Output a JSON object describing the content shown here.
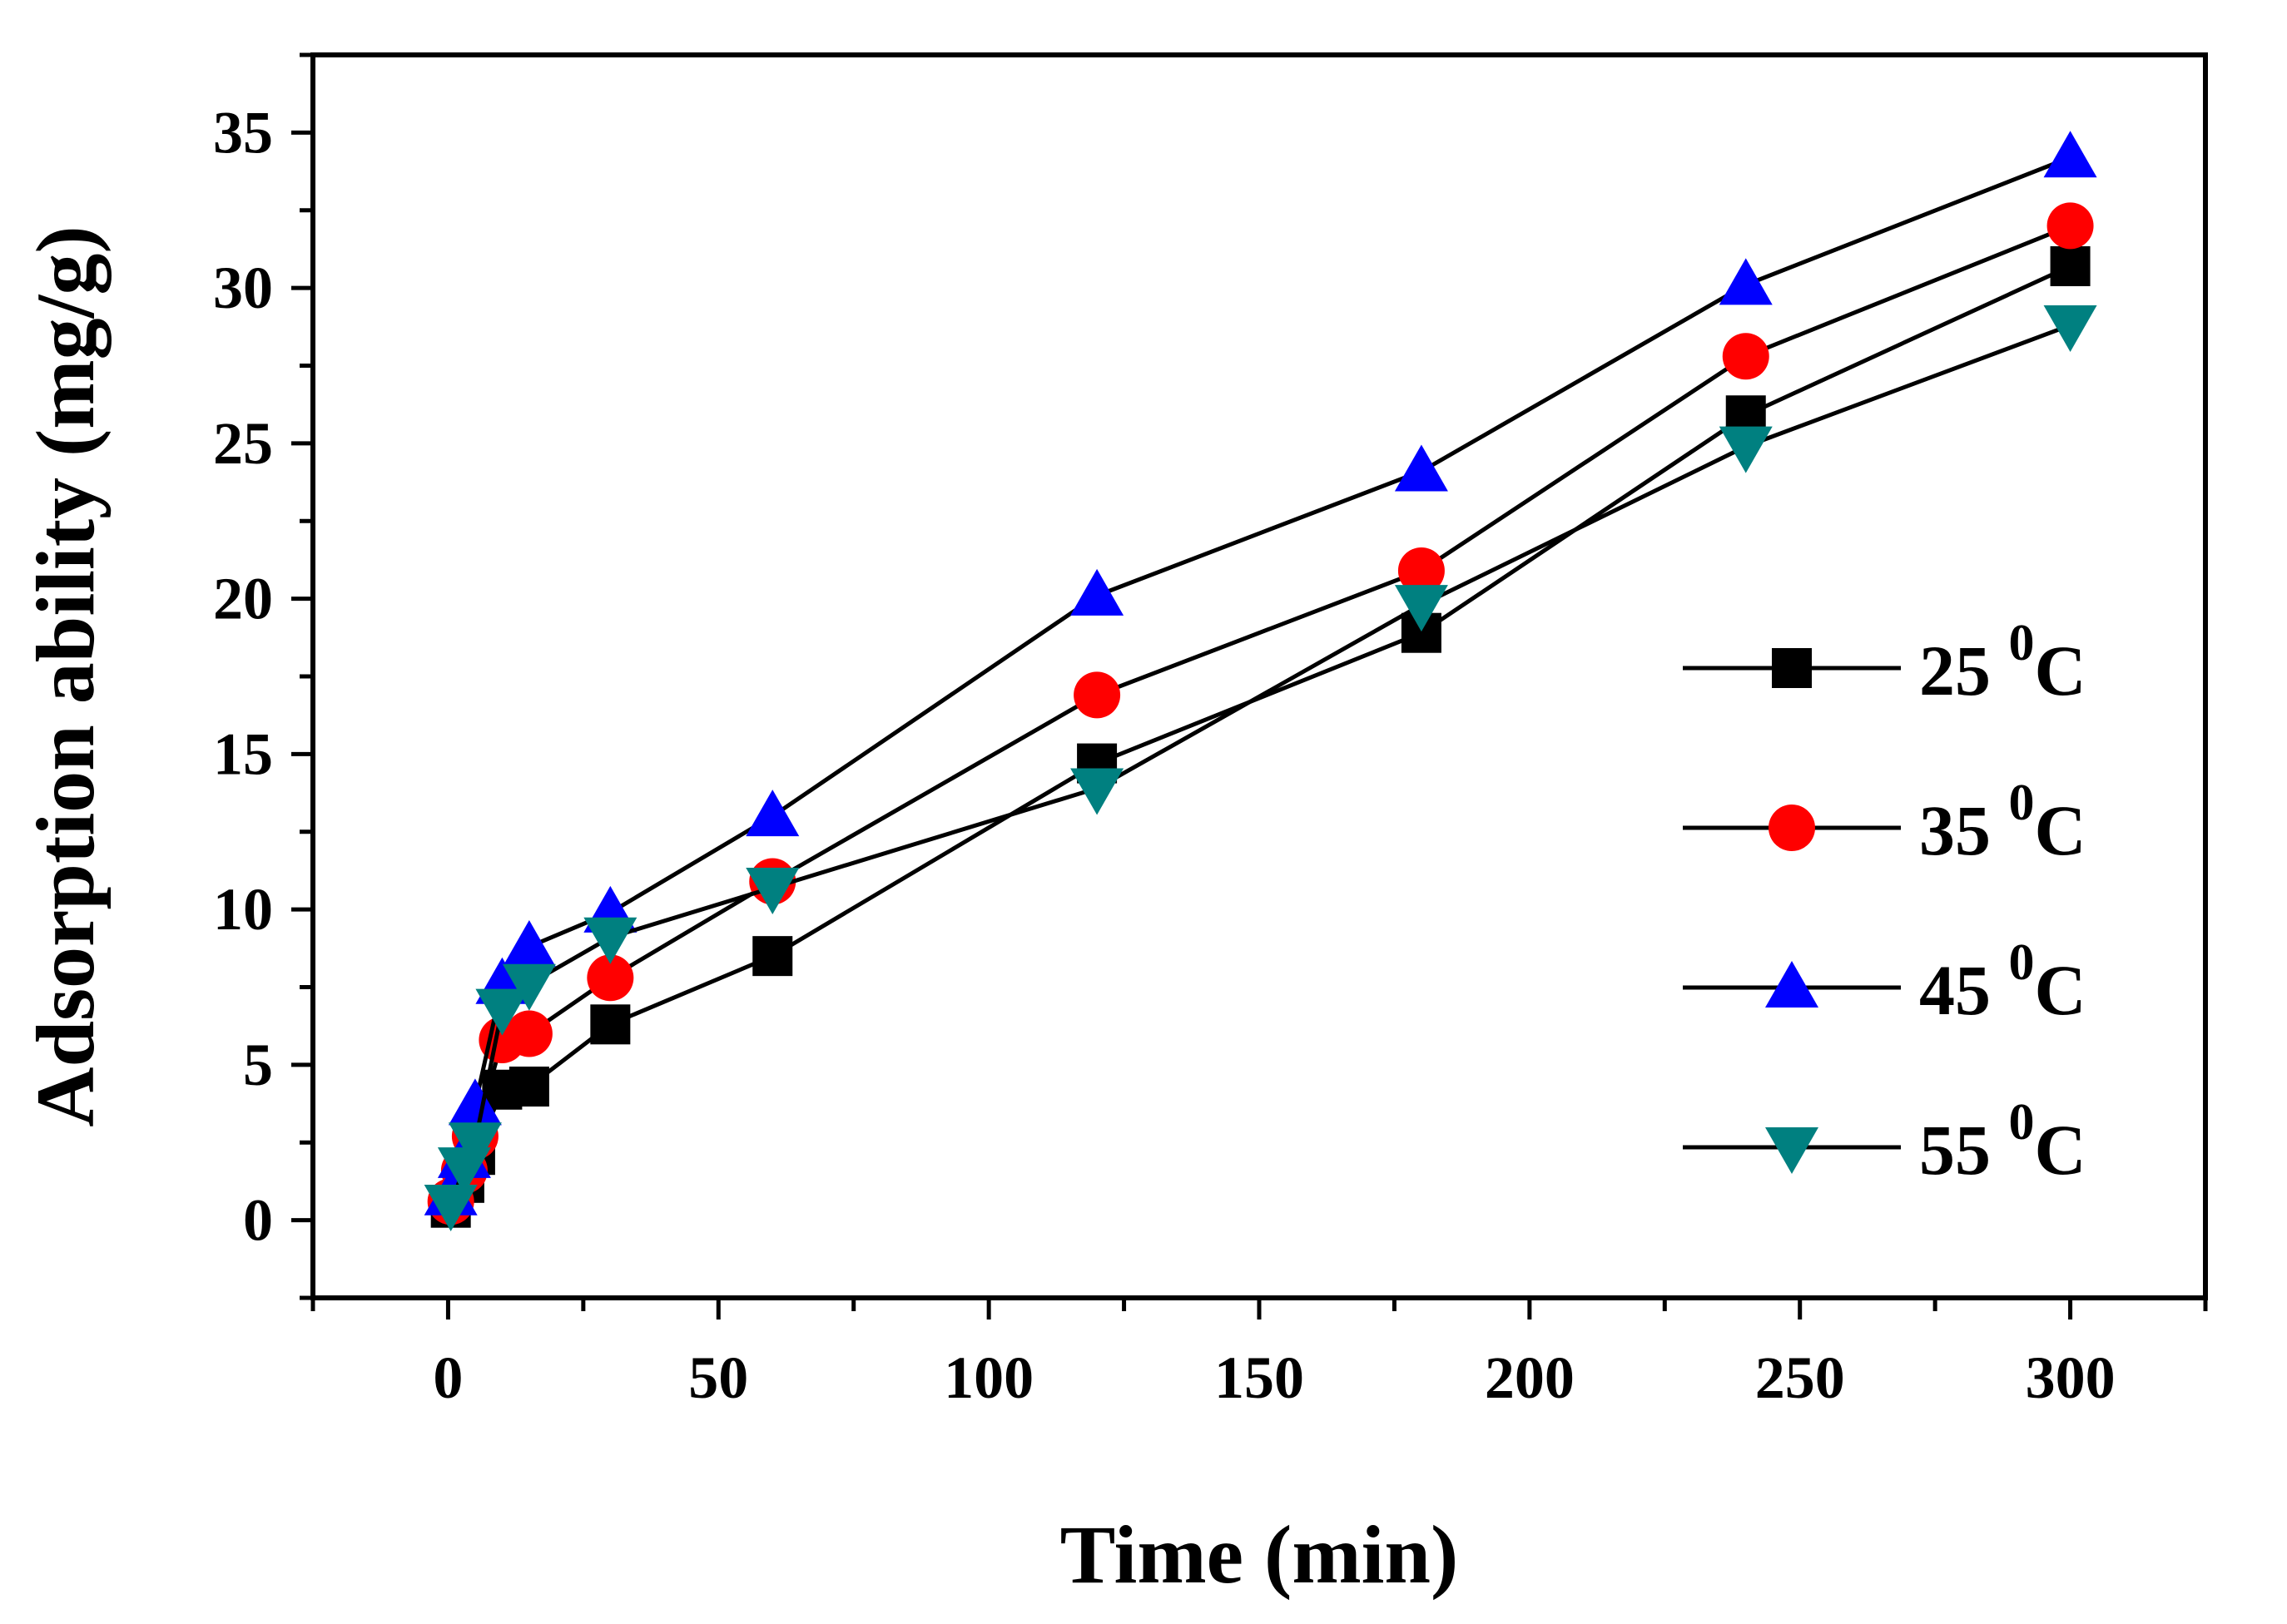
{
  "chart_data": {
    "type": "line",
    "title": "",
    "xlabel": "Time (min)",
    "ylabel": "Adsorption ability (mg/g)",
    "xlim": [
      -25,
      325
    ],
    "ylim": [
      -2.5,
      37.5
    ],
    "xticks": [
      0,
      50,
      100,
      150,
      200,
      250,
      300
    ],
    "yticks": [
      0,
      5,
      10,
      15,
      20,
      25,
      30,
      35
    ],
    "x": [
      0.5,
      3,
      5,
      10,
      15,
      30,
      60,
      120,
      180,
      240,
      300
    ],
    "legend_position": "center-right",
    "series": [
      {
        "name": "25 ⁰C",
        "label_main": "25",
        "label_sup": "0",
        "label_unit": "C",
        "marker": "square",
        "color": "#000000",
        "values": [
          0.4,
          1.2,
          2.1,
          4.2,
          4.3,
          6.3,
          8.5,
          14.7,
          18.9,
          25.9,
          30.7
        ]
      },
      {
        "name": "35 ⁰C",
        "label_main": "35",
        "label_sup": "0",
        "label_unit": "C",
        "marker": "circle",
        "color": "#ff0000",
        "values": [
          0.6,
          1.6,
          2.7,
          5.8,
          6.0,
          7.8,
          10.9,
          16.9,
          20.9,
          27.8,
          32.0
        ]
      },
      {
        "name": "45 ⁰C",
        "label_main": "45",
        "label_sup": "0",
        "label_unit": "C",
        "marker": "triangle-up",
        "color": "#0000ff",
        "values": [
          0.8,
          2.0,
          3.7,
          7.6,
          8.8,
          9.9,
          13.0,
          20.1,
          24.1,
          30.1,
          34.2
        ]
      },
      {
        "name": "55 ⁰C",
        "label_main": "55",
        "label_sup": "0",
        "label_unit": "C",
        "marker": "triangle-down",
        "color": "#008080",
        "values": [
          0.5,
          1.7,
          2.5,
          6.8,
          7.6,
          9.1,
          10.7,
          13.9,
          19.8,
          24.9,
          28.8
        ]
      }
    ]
  }
}
